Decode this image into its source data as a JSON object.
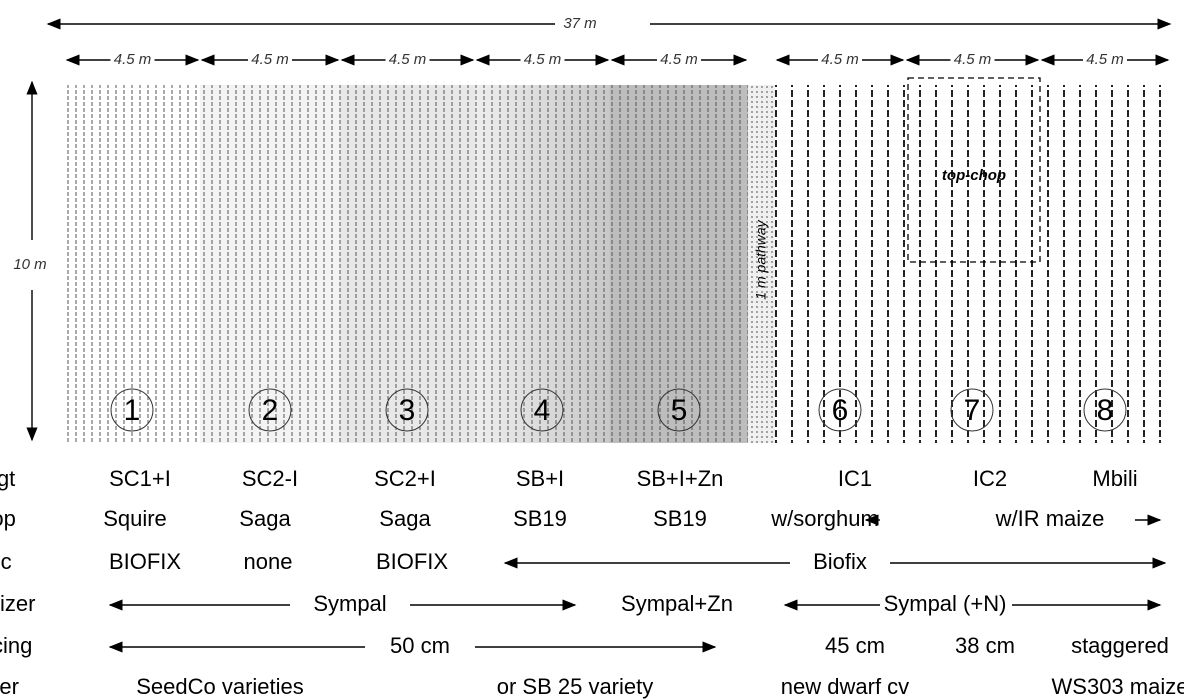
{
  "dimensions": {
    "total_width": "37 m",
    "plot_width": "4.5 m",
    "height": "10 m",
    "pathway": "1 m pathway",
    "subplot": "top-chop"
  },
  "plots": [
    "1",
    "2",
    "3",
    "4",
    "5",
    "6",
    "7",
    "8"
  ],
  "rows": [
    {
      "label": "ngt",
      "items": [
        "SC1+I",
        "SC2-I",
        "SC2+I",
        "SB+I",
        "SB+I+Zn",
        "IC1",
        "IC2",
        "Mbili"
      ]
    },
    {
      "label": "rop",
      "items": [
        "Squire",
        "Saga",
        "Saga",
        "SB19",
        "SB19",
        "w/sorghum",
        "w/IR maize"
      ]
    },
    {
      "label": "oc",
      "items": [
        "BIOFIX",
        "none",
        "BIOFIX",
        "Biofix"
      ]
    },
    {
      "label": "ertilizer",
      "items": [
        "Sympal",
        "Sympal+Zn",
        "Sympal (+N)"
      ]
    },
    {
      "label": "pacing",
      "items": [
        "50 cm",
        "45 cm",
        "38 cm",
        "staggered"
      ]
    },
    {
      "label": "ther",
      "items": [
        "SeedCo varieties",
        "or SB 25 variety",
        "new dwarf cv",
        "WS303 maize"
      ]
    }
  ]
}
